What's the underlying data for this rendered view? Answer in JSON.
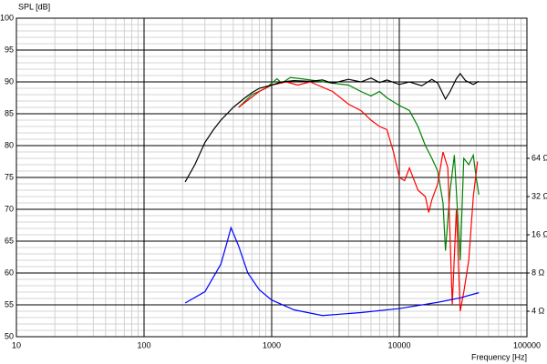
{
  "chart_data": {
    "type": "line",
    "y_label": "SPL [dB]",
    "x_label": "Frequency [Hz]",
    "log_x": true,
    "log_y2": true,
    "grid": true,
    "minor_grid": true,
    "xlim": [
      10,
      100000
    ],
    "xticks": [
      10,
      100,
      1000,
      10000,
      100000
    ],
    "ylim": [
      50,
      100
    ],
    "yticks": [
      50,
      55,
      60,
      65,
      70,
      75,
      80,
      85,
      90,
      95,
      100
    ],
    "y2lim": [
      2.52,
      812
    ],
    "y2ticks": [
      {
        "value": 4,
        "label": "4 Ω"
      },
      {
        "value": 8,
        "label": "8 Ω"
      },
      {
        "value": 16,
        "label": "16 Ω"
      },
      {
        "value": 32,
        "label": "32 Ω"
      },
      {
        "value": 64,
        "label": "64 Ω"
      }
    ],
    "series": [
      {
        "color": "#008000",
        "x": [
          550,
          700,
          900,
          1100,
          1200,
          1400,
          1700,
          2000,
          3000,
          4000,
          5000,
          6000,
          7000,
          8000,
          10000,
          12000,
          14000,
          16000,
          18000,
          20000,
          22000,
          23000,
          25000,
          27000,
          30000,
          32000,
          35000,
          38000,
          40000,
          42000
        ],
        "values": [
          86,
          88,
          89,
          90.5,
          89.8,
          90.7,
          90.5,
          90.3,
          89.8,
          89.5,
          88.5,
          87.8,
          88.5,
          87.5,
          86.3,
          85.5,
          83,
          80,
          78,
          76,
          71,
          63.5,
          73,
          78.5,
          62,
          78,
          77,
          78.5,
          75,
          72.3
        ]
      },
      {
        "color": "#ff0000",
        "x": [
          550,
          800,
          1000,
          1300,
          1600,
          2000,
          3000,
          4000,
          5000,
          6000,
          7000,
          8000,
          9000,
          10000,
          11000,
          12000,
          14000,
          16000,
          17000,
          18000,
          20000,
          22000,
          24000,
          26000,
          28000,
          30000,
          32000,
          35000,
          38000,
          41000
        ],
        "values": [
          86,
          88.5,
          89.5,
          90,
          89.5,
          90,
          88.5,
          86.5,
          85.5,
          84,
          83,
          82.5,
          79,
          75,
          74.5,
          76.5,
          73,
          72,
          69.5,
          71.5,
          74,
          79,
          76.5,
          55,
          70,
          54,
          57,
          62,
          72,
          77.5
        ]
      },
      {
        "color": "#000000",
        "x": [
          210,
          250,
          300,
          350,
          400,
          500,
          600,
          700,
          800,
          1000,
          1200,
          1500,
          2000,
          2500,
          3000,
          4000,
          5000,
          6000,
          7000,
          8000,
          10000,
          12000,
          15000,
          18000,
          20000,
          23000,
          25000,
          28000,
          30000,
          33000,
          38000,
          42000
        ],
        "values": [
          74.3,
          77,
          80.5,
          82.5,
          84,
          86,
          87.3,
          88.3,
          89,
          89.5,
          90,
          90.2,
          90.1,
          90.3,
          89.8,
          90.4,
          90,
          90.6,
          89.9,
          90.3,
          89.6,
          90,
          89.4,
          90.4,
          89.8,
          87.3,
          88.5,
          90.5,
          91.3,
          90.2,
          89.6,
          90.1
        ]
      },
      {
        "color": "#0000ff",
        "axis": "y2",
        "x": [
          210,
          300,
          400,
          450,
          480,
          550,
          650,
          800,
          1000,
          1500,
          2500,
          5000,
          10000,
          20000,
          30000,
          42000
        ],
        "values": [
          4.64,
          5.7,
          9.4,
          14.3,
          18.2,
          13.1,
          8,
          5.9,
          4.9,
          4.1,
          3.7,
          3.9,
          4.2,
          4.7,
          5.1,
          5.6
        ]
      }
    ]
  }
}
